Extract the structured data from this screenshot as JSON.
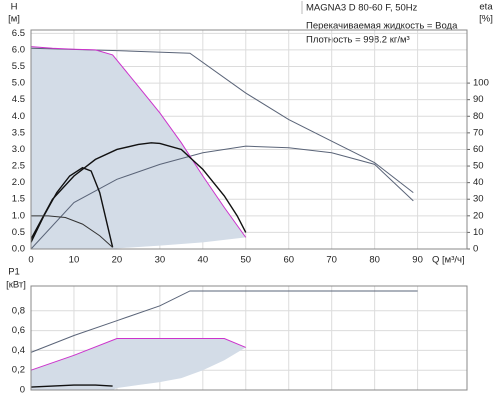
{
  "chart_data": [
    {
      "type": "line",
      "title": "MAGNA3 D 80-60 F, 50Hz",
      "annotations": [
        "Перекачиваемая жидкость = Вода",
        "Плотность = 998.2 кг/м³"
      ],
      "y_label": "H",
      "y_unit": "[м]",
      "y2_label": "eta",
      "y2_unit": "[%]",
      "x_label": "Q [м³/ч]",
      "xlim": [
        0,
        101.5
      ],
      "xticks": [
        0,
        10,
        20,
        30,
        40,
        50,
        60,
        70,
        80,
        90
      ],
      "ylim": [
        0,
        6.6
      ],
      "yticks": [
        {
          "value": 0,
          "label": "0.0"
        },
        {
          "value": 0.5,
          "label": "0.5"
        },
        {
          "value": 1,
          "label": "1.0"
        },
        {
          "value": 1.5,
          "label": "1.5"
        },
        {
          "value": 2,
          "label": "2.0"
        },
        {
          "value": 2.5,
          "label": "2.5"
        },
        {
          "value": 3,
          "label": "3.0"
        },
        {
          "value": 3.5,
          "label": "3.5"
        },
        {
          "value": 4,
          "label": "4.0"
        },
        {
          "value": 4.5,
          "label": "4.5"
        },
        {
          "value": 5,
          "label": "5.0"
        },
        {
          "value": 5.5,
          "label": "5.5"
        },
        {
          "value": 6,
          "label": "6.0"
        },
        {
          "value": 6.5,
          "label": "6.5"
        }
      ],
      "y2lim": [
        0,
        132
      ],
      "y2ticks": [
        0,
        10,
        20,
        30,
        40,
        50,
        60,
        70,
        80,
        90,
        100
      ],
      "grid": true,
      "area": {
        "color": "#d3dce7",
        "x": [
          0,
          5,
          10,
          15,
          19,
          25,
          30,
          35,
          40,
          45,
          50,
          50,
          40,
          30,
          20,
          19,
          0
        ],
        "values": [
          6.1,
          6.05,
          6.02,
          6.0,
          5.85,
          4.9,
          4.1,
          3.2,
          2.2,
          1.25,
          0.35,
          0.35,
          0.2,
          0.1,
          0.02,
          0,
          0
        ]
      },
      "series": [
        {
          "color": "#5a6478",
          "x": [
            0,
            20,
            37,
            50,
            60,
            70,
            80,
            89
          ],
          "values": [
            6.05,
            5.98,
            5.9,
            4.7,
            3.9,
            3.25,
            2.6,
            1.7
          ]
        },
        {
          "color": "#5a6478",
          "axis": "y2",
          "x": [
            0,
            10,
            20,
            30,
            40,
            50,
            60,
            70,
            80,
            89
          ],
          "values": [
            0,
            28,
            42,
            51,
            58,
            62,
            61,
            58,
            51,
            29
          ]
        },
        {
          "color": "#cc33cc",
          "x": [
            0,
            5,
            10,
            15,
            19,
            25,
            30,
            35,
            40,
            45,
            50
          ],
          "values": [
            6.1,
            6.05,
            6.02,
            6.0,
            5.85,
            4.9,
            4.1,
            3.2,
            2.2,
            1.25,
            0.35
          ]
        },
        {
          "color": "#111111",
          "x": [
            0,
            5,
            10,
            15,
            20,
            25,
            28,
            30,
            35,
            40,
            45,
            48,
            50
          ],
          "values": [
            0.3,
            1.5,
            2.2,
            2.7,
            3.0,
            3.15,
            3.2,
            3.18,
            3.0,
            2.4,
            1.6,
            1.0,
            0.5
          ]
        },
        {
          "color": "#111111",
          "x": [
            0,
            3,
            6,
            9,
            12,
            14,
            16,
            18,
            19
          ],
          "values": [
            0.2,
            1.0,
            1.7,
            2.2,
            2.45,
            2.35,
            1.7,
            0.6,
            0.05
          ]
        },
        {
          "color": "#333333",
          "x": [
            0,
            4,
            8,
            12,
            16,
            19
          ],
          "values": [
            1.0,
            1.0,
            0.95,
            0.75,
            0.4,
            0.05
          ]
        }
      ]
    },
    {
      "type": "line",
      "y_label": "P1",
      "y_unit": "[кВт]",
      "xlim": [
        0,
        101.5
      ],
      "xticks": [
        0,
        10,
        20,
        30,
        40,
        50,
        60,
        70,
        80,
        90
      ],
      "ylim": [
        0,
        1.05
      ],
      "yticks": [
        0,
        {
          "value": 0.2,
          "label": "0,2"
        },
        {
          "value": 0.4,
          "label": "0,4"
        },
        {
          "value": 0.6,
          "label": "0,6"
        },
        {
          "value": 0.8,
          "label": "0,8"
        }
      ],
      "grid": true,
      "area": {
        "color": "#d3dce7",
        "x": [
          0,
          10,
          20,
          30,
          40,
          45,
          50,
          45,
          40,
          35,
          30,
          25,
          20,
          19,
          0
        ],
        "values": [
          0.2,
          0.35,
          0.52,
          0.52,
          0.52,
          0.52,
          0.43,
          0.3,
          0.2,
          0.12,
          0.08,
          0.05,
          0.02,
          0,
          0
        ]
      },
      "series": [
        {
          "color": "#5a6478",
          "x": [
            0,
            10,
            20,
            30,
            37,
            50,
            60,
            70,
            80,
            90
          ],
          "values": [
            0.38,
            0.55,
            0.7,
            0.85,
            1.0,
            1.0,
            1.0,
            1.0,
            1.0,
            1.0
          ]
        },
        {
          "color": "#cc33cc",
          "x": [
            0,
            10,
            20,
            30,
            40,
            45,
            50
          ],
          "values": [
            0.2,
            0.35,
            0.52,
            0.52,
            0.52,
            0.52,
            0.43
          ]
        },
        {
          "color": "#111111",
          "x": [
            0,
            5,
            10,
            15,
            19
          ],
          "values": [
            0.03,
            0.04,
            0.05,
            0.05,
            0.04
          ]
        }
      ]
    }
  ]
}
